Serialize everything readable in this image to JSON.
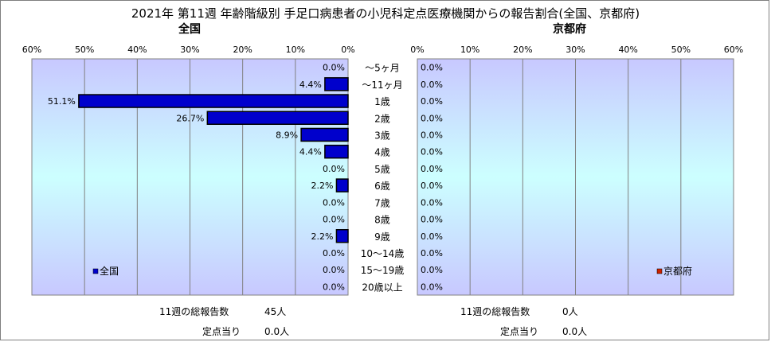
{
  "title": "2021年 第11週 年齢階級別 手足口病患者の小児科定点医療機関からの報告割合(全国、京都府)",
  "colors": {
    "national": "#0000cc",
    "kyoto": "#cc2200"
  },
  "chart_data": [
    {
      "type": "bar",
      "orientation": "horizontal-reversed",
      "title": "全国",
      "categories": [
        "～5ヶ月",
        "～11ヶ月",
        "1歳",
        "2歳",
        "3歳",
        "4歳",
        "5歳",
        "6歳",
        "7歳",
        "8歳",
        "9歳",
        "10～14歳",
        "15～19歳",
        "20歳以上"
      ],
      "series": [
        {
          "name": "全国",
          "values": [
            0.0,
            4.4,
            51.1,
            26.7,
            8.9,
            4.4,
            0.0,
            2.2,
            0.0,
            0.0,
            2.2,
            0.0,
            0.0,
            0.0
          ]
        }
      ],
      "data_labels": [
        "0.0%",
        "4.4%",
        "51.1%",
        "26.7%",
        "8.9%",
        "4.4%",
        "0.0%",
        "2.2%",
        "0.0%",
        "0.0%",
        "2.2%",
        "0.0%",
        "0.0%",
        "0.0%"
      ],
      "xlim": [
        0,
        60
      ],
      "ticks": [
        0,
        10,
        20,
        30,
        40,
        50,
        60
      ],
      "tick_labels": [
        "0%",
        "10%",
        "20%",
        "30%",
        "40%",
        "50%",
        "60%"
      ],
      "legend": "bottom-left",
      "grid": true
    },
    {
      "type": "bar",
      "orientation": "horizontal",
      "title": "京都府",
      "categories": [
        "～5ヶ月",
        "～11ヶ月",
        "1歳",
        "2歳",
        "3歳",
        "4歳",
        "5歳",
        "6歳",
        "7歳",
        "8歳",
        "9歳",
        "10～14歳",
        "15～19歳",
        "20歳以上"
      ],
      "series": [
        {
          "name": "京都府",
          "values": [
            0.0,
            0.0,
            0.0,
            0.0,
            0.0,
            0.0,
            0.0,
            0.0,
            0.0,
            0.0,
            0.0,
            0.0,
            0.0,
            0.0
          ]
        }
      ],
      "data_labels": [
        "0.0%",
        "0.0%",
        "0.0%",
        "0.0%",
        "0.0%",
        "0.0%",
        "0.0%",
        "0.0%",
        "0.0%",
        "0.0%",
        "0.0%",
        "0.0%",
        "0.0%",
        "0.0%"
      ],
      "xlim": [
        0,
        60
      ],
      "ticks": [
        0,
        10,
        20,
        30,
        40,
        50,
        60
      ],
      "tick_labels": [
        "0%",
        "10%",
        "20%",
        "30%",
        "40%",
        "50%",
        "60%"
      ],
      "legend": "bottom-right",
      "grid": true
    }
  ],
  "footer": {
    "national": {
      "total_label": "11週の総報告数",
      "total_value": "45人",
      "per_label": "定点当り",
      "per_value": "0.0人"
    },
    "kyoto": {
      "total_label": "11週の総報告数",
      "total_value": "0人",
      "per_label": "定点当り",
      "per_value": "0.0人"
    }
  }
}
